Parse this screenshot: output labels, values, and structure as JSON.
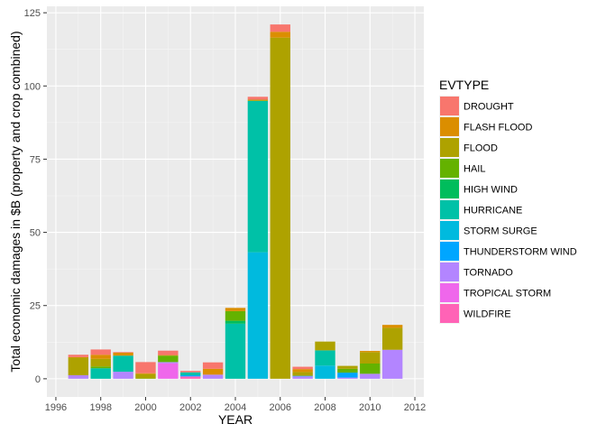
{
  "chart_data": {
    "type": "bar",
    "stacked": true,
    "xlabel": "YEAR",
    "ylabel": "Total economic damages in $B (property and crop combined)",
    "xlim": [
      1995.6,
      2012.4
    ],
    "ylim": [
      -6.2,
      127.2
    ],
    "x_ticks": [
      1996,
      1998,
      2000,
      2002,
      2004,
      2006,
      2008,
      2010,
      2012
    ],
    "x_tick_labels": [
      "1996",
      "1998",
      "2000",
      "2002",
      "2004",
      "2006",
      "2008",
      "2010",
      "2012"
    ],
    "y_ticks": [
      0,
      25,
      50,
      75,
      100,
      125
    ],
    "y_tick_labels": [
      "0",
      "25",
      "50",
      "75",
      "100",
      "125"
    ],
    "grid": true,
    "legend": {
      "title": "EVTYPE",
      "placement": "right"
    },
    "categories": [
      1997,
      1998,
      1999,
      2000,
      2001,
      2002,
      2003,
      2004,
      2005,
      2006,
      2007,
      2008,
      2009,
      2010,
      2011
    ],
    "series": [
      {
        "name": "DROUGHT",
        "color": "#F8766D",
        "values": [
          0.8,
          1.8,
          0.2,
          3.8,
          1.5,
          0.5,
          2.2,
          0,
          1.0,
          2.5,
          0.8,
          0,
          0,
          0,
          0
        ]
      },
      {
        "name": "FLASH FLOOD",
        "color": "#DB8E00",
        "values": [
          0.2,
          1.4,
          1.0,
          0.3,
          0.2,
          0,
          2.0,
          1.1,
          0,
          2.0,
          1.0,
          0,
          0,
          0.4,
          1.0
        ]
      },
      {
        "name": "FLOOD",
        "color": "#AEA200",
        "values": [
          6.0,
          2.6,
          0,
          1.5,
          0,
          0,
          0,
          0,
          0.4,
          116.5,
          1.3,
          3.0,
          1.0,
          3.9,
          7.5
        ]
      },
      {
        "name": "HAIL",
        "color": "#64B200",
        "values": [
          0,
          0.6,
          0,
          0.1,
          2.2,
          0,
          0,
          3.3,
          0,
          0,
          0,
          0,
          1.3,
          3.5,
          0
        ]
      },
      {
        "name": "HIGH WIND",
        "color": "#00BD5C",
        "values": [
          0,
          0,
          0,
          0,
          0,
          0,
          0,
          1.0,
          0,
          0,
          0,
          0,
          0,
          0,
          0
        ]
      },
      {
        "name": "HURRICANE",
        "color": "#00C1A7",
        "values": [
          0,
          3.6,
          5.5,
          0,
          0,
          1.0,
          0,
          18.8,
          51.7,
          0,
          0,
          5.2,
          0,
          0,
          0
        ]
      },
      {
        "name": "STORM SURGE",
        "color": "#00BADE",
        "values": [
          0,
          0,
          0,
          0,
          0,
          0,
          0,
          0,
          43.2,
          0,
          0,
          4.5,
          0,
          0,
          0
        ]
      },
      {
        "name": "THUNDERSTORM WIND",
        "color": "#00A6FF",
        "values": [
          0,
          0,
          0,
          0,
          0,
          0.4,
          0,
          0,
          0,
          0,
          0.2,
          0,
          1.7,
          0,
          0
        ]
      },
      {
        "name": "TORNADO",
        "color": "#B385FF",
        "values": [
          1.2,
          0,
          2.4,
          0,
          0.4,
          0,
          1.4,
          0,
          0,
          0,
          0.8,
          0,
          0.4,
          1.7,
          9.9
        ]
      },
      {
        "name": "TROPICAL STORM",
        "color": "#EF67EB",
        "values": [
          0,
          0,
          0,
          0,
          5.3,
          0,
          0,
          0,
          0,
          0,
          0,
          0,
          0,
          0,
          0
        ]
      },
      {
        "name": "WILDFIRE",
        "color": "#FF63B6",
        "values": [
          0,
          0,
          0,
          0,
          0,
          0.8,
          0,
          0,
          0,
          0,
          0,
          0,
          0,
          0,
          0
        ]
      }
    ]
  }
}
